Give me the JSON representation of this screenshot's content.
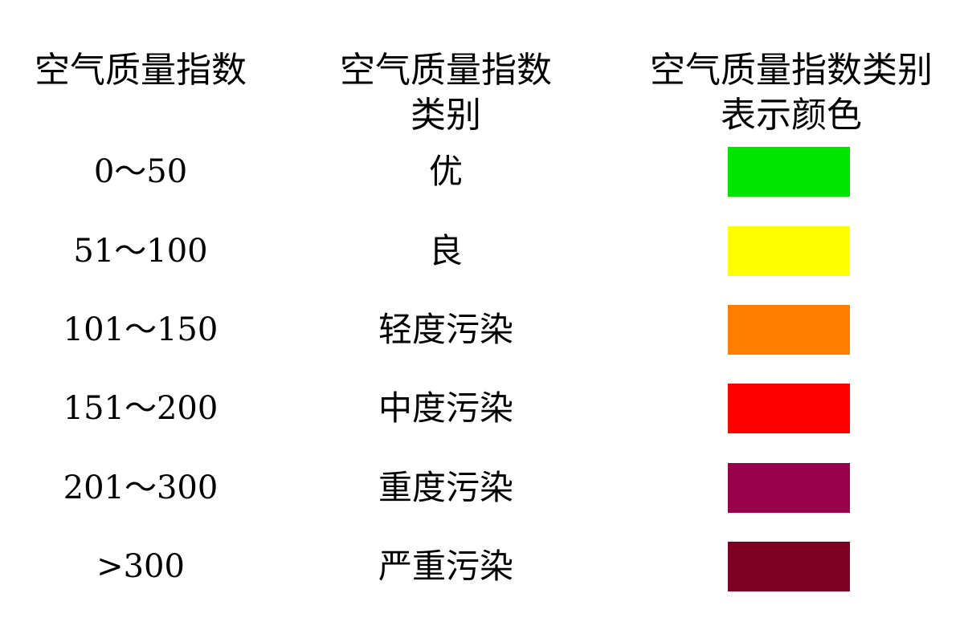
{
  "headers": {
    "range": "空气质量指数",
    "category": "空气质量指数\n类别",
    "color": "空气质量指数类别\n表示颜色"
  },
  "rows": [
    {
      "range": "0～50",
      "category": "优",
      "color": "#00E400"
    },
    {
      "range": "51～100",
      "category": "良",
      "color": "#FFFF00"
    },
    {
      "range": "101～150",
      "category": "轻度污染",
      "color": "#FF7E00"
    },
    {
      "range": "151～200",
      "category": "中度污染",
      "color": "#FF0000"
    },
    {
      "range": "201～300",
      "category": "重度污染",
      "color": "#99004C"
    },
    {
      "range": ">300",
      "category": "严重污染",
      "color": "#7E0023"
    }
  ]
}
